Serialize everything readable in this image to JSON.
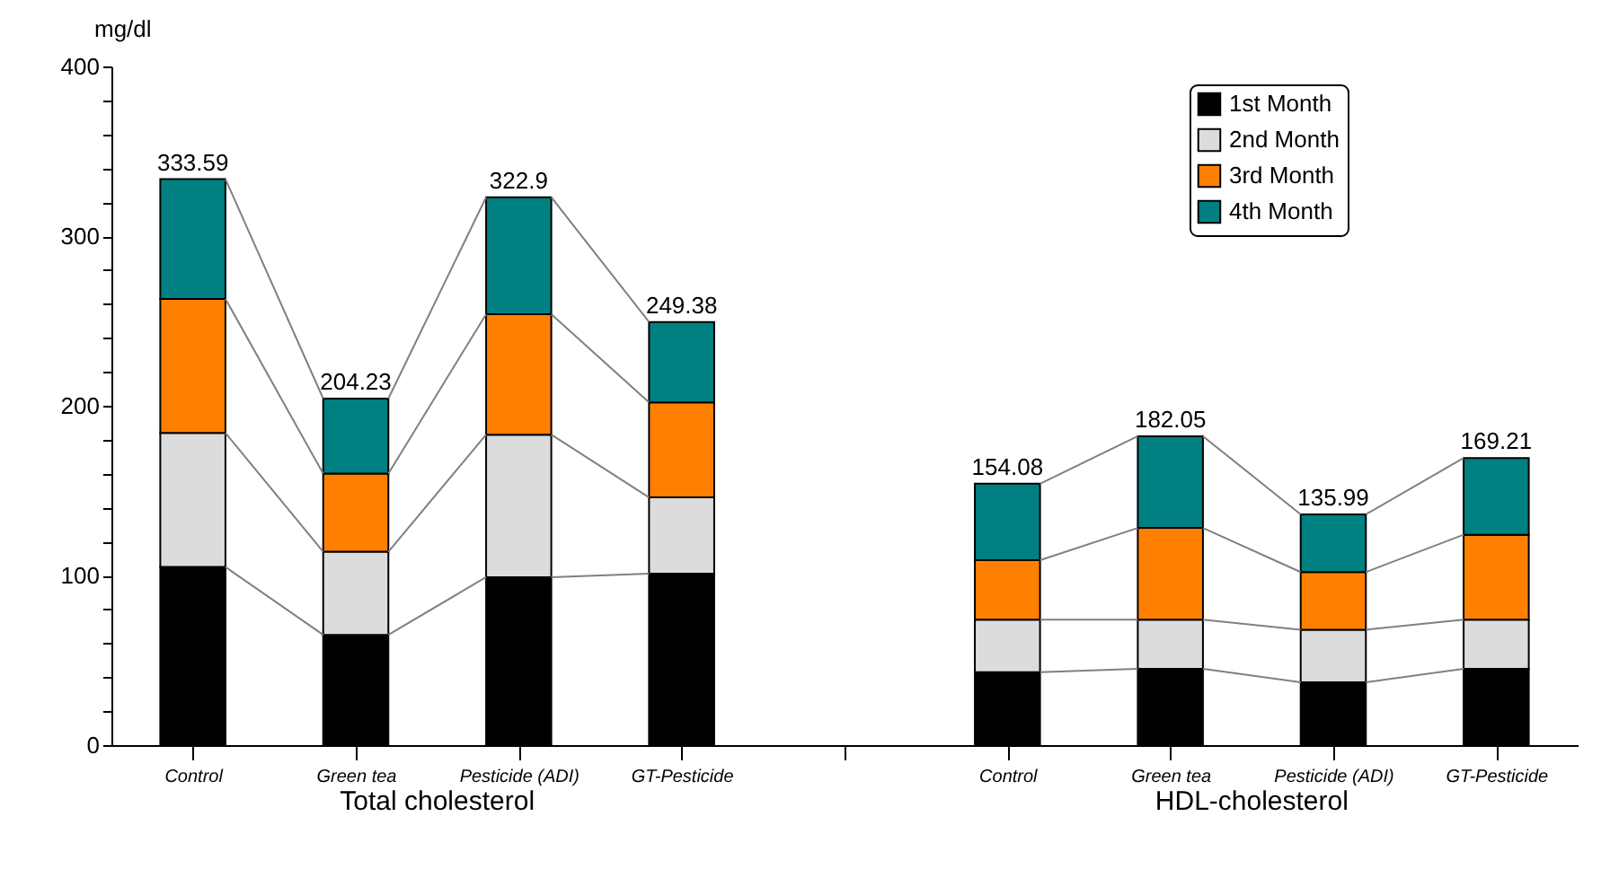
{
  "chart_data": {
    "type": "bar",
    "stacked": true,
    "ylabel": "mg/dl",
    "categories": [
      "Control",
      "Green tea",
      "Pesticide (ADI)",
      "GT-Pesticide",
      null,
      "Control",
      "Green tea",
      "Pesticide (ADI)",
      "GT-Pesticide"
    ],
    "series": [
      {
        "name": "1st Month",
        "color": "#000000",
        "values": [
          105,
          65,
          99,
          101,
          null,
          43,
          45,
          37,
          45
        ]
      },
      {
        "name": "2nd Month",
        "color": "#dcdcdc",
        "values": [
          79,
          49,
          84,
          45,
          null,
          31,
          29,
          31,
          29
        ]
      },
      {
        "name": "3rd Month",
        "color": "#ff8000",
        "values": [
          79,
          46,
          71,
          56,
          null,
          35,
          54,
          34,
          50
        ]
      },
      {
        "name": "4th Month",
        "color": "#008080",
        "values": [
          70.59,
          44.23,
          68.9,
          47.38,
          null,
          45.08,
          54.05,
          33.99,
          45.21
        ]
      }
    ],
    "totals": [
      "333.59",
      "204.23",
      "322.9",
      "249.38",
      null,
      "154.08",
      "182.05",
      "135.99",
      "169.21"
    ],
    "annotations": [
      "Total cholesterol",
      "HDL-cholesterol"
    ],
    "ylim": [
      0,
      400
    ],
    "yticks": [
      0,
      {
        "value": 20,
        "label": null
      },
      {
        "value": 40,
        "label": null
      },
      {
        "value": 60,
        "label": null
      },
      {
        "value": 80,
        "label": null
      },
      100,
      {
        "value": 120,
        "label": null
      },
      {
        "value": 140,
        "label": null
      },
      {
        "value": 160,
        "label": null
      },
      {
        "value": 180,
        "label": null
      },
      200,
      {
        "value": 220,
        "label": null
      },
      {
        "value": 240,
        "label": null
      },
      {
        "value": 260,
        "label": null
      },
      {
        "value": 280,
        "label": null
      },
      300,
      {
        "value": 320,
        "label": null
      },
      {
        "value": 340,
        "label": null
      },
      {
        "value": 360,
        "label": null
      },
      {
        "value": 380,
        "label": null
      },
      400
    ],
    "grid": false,
    "legend": "top right"
  }
}
